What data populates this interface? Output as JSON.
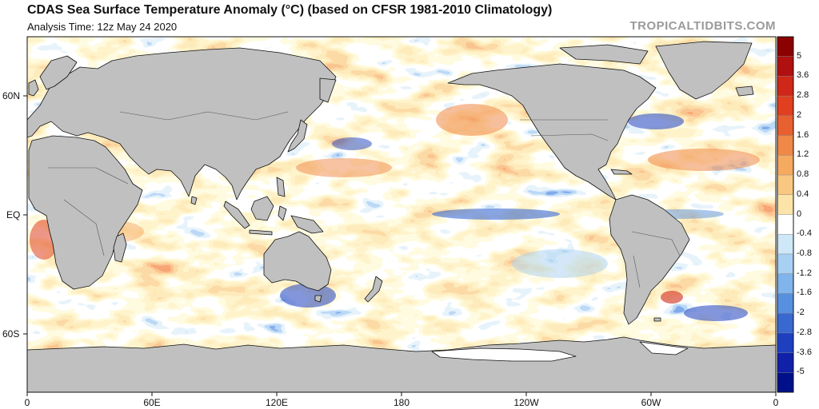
{
  "header": {
    "title": "CDAS Sea Surface Temperature Anomaly (°C) (based on CFSR 1981-2010 Climatology)",
    "subtitle": "Analysis Time: 12z May 24 2020",
    "watermark": "TROPICALTIDBITS.COM"
  },
  "map": {
    "lat_labels": [
      "60N",
      "EQ",
      "60S"
    ],
    "lon_labels": [
      "0",
      "60E",
      "120E",
      "180",
      "120W",
      "60W",
      "0"
    ]
  },
  "colorbar": {
    "labels": [
      "5",
      "3.6",
      "2.8",
      "2",
      "1.6",
      "1.2",
      "0.8",
      "0.4",
      "0",
      "-0.4",
      "-0.8",
      "-1.2",
      "-1.6",
      "-2",
      "-2.8",
      "-3.6",
      "-5"
    ],
    "colors": [
      "#8b0000",
      "#b01010",
      "#d02818",
      "#e04020",
      "#e86030",
      "#f08848",
      "#f5aa60",
      "#f8c880",
      "#fce4a8",
      "#ffffff",
      "#cfe8f8",
      "#a8d0f2",
      "#80b4ea",
      "#5890e0",
      "#3868d0",
      "#1e40c0",
      "#1020a8",
      "#00108a"
    ]
  },
  "colors": {
    "land": "#c0c0c0",
    "ice": "#ffffff",
    "coast": "#111111"
  }
}
